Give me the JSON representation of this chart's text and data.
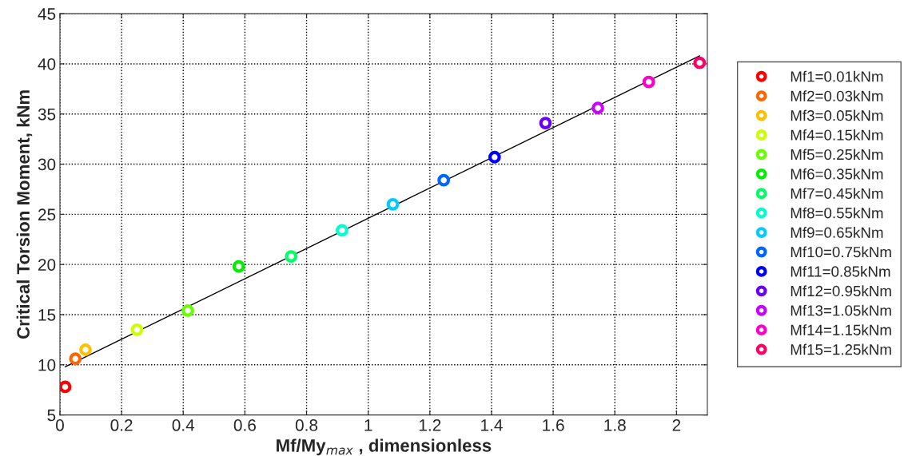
{
  "chart_data": {
    "type": "scatter",
    "xlabel": "Mf/My$_{max}$ , dimensionless",
    "ylabel": "Critical Torsion Moment, kNm",
    "xlim": [
      0,
      2.1
    ],
    "xticks": [
      0,
      0.2,
      0.4,
      0.6,
      0.8,
      1,
      1.2,
      1.4,
      1.6,
      1.8,
      2
    ],
    "ylim": [
      5,
      45
    ],
    "yticks": [
      5,
      10,
      15,
      20,
      25,
      30,
      35,
      40,
      45
    ],
    "grid": true,
    "legend": "right",
    "marker": "circle",
    "series": [
      {
        "type": "line",
        "color": "#000000",
        "x": [
          0.017,
          2.075
        ],
        "values": [
          9.8,
          40.8
        ],
        "marker": "none"
      },
      {
        "name": "Mf1=0.01kNm",
        "color": "#ff0000",
        "x": [
          0.017
        ],
        "values": [
          7.8
        ]
      },
      {
        "name": "Mf2=0.03kNm",
        "color": "#ff6600",
        "x": [
          0.05
        ],
        "values": [
          10.6
        ]
      },
      {
        "name": "Mf3=0.05kNm",
        "color": "#ffc000",
        "x": [
          0.083
        ],
        "values": [
          11.5
        ]
      },
      {
        "name": "Mf4=0.15kNm",
        "color": "#ccff00",
        "x": [
          0.25
        ],
        "values": [
          13.5
        ]
      },
      {
        "name": "Mf5=0.25kNm",
        "color": "#66ff00",
        "x": [
          0.415
        ],
        "values": [
          15.4
        ]
      },
      {
        "name": "Mf6=0.35kNm",
        "color": "#00ee00",
        "x": [
          0.58
        ],
        "values": [
          19.8
        ]
      },
      {
        "name": "Mf7=0.45kNm",
        "color": "#00ff66",
        "x": [
          0.75
        ],
        "values": [
          20.8
        ]
      },
      {
        "name": "Mf8=0.55kNm",
        "color": "#00ffcc",
        "x": [
          0.915
        ],
        "values": [
          23.4
        ]
      },
      {
        "name": "Mf9=0.65kNm",
        "color": "#00ccff",
        "x": [
          1.08
        ],
        "values": [
          26.0
        ]
      },
      {
        "name": "Mf10=0.75kNm",
        "color": "#0066ff",
        "x": [
          1.245
        ],
        "values": [
          28.4
        ]
      },
      {
        "name": "Mf11=0.85kNm",
        "color": "#0000ff",
        "x": [
          1.41
        ],
        "values": [
          30.7
        ]
      },
      {
        "name": "Mf12=0.95kNm",
        "color": "#6600ff",
        "x": [
          1.575
        ],
        "values": [
          34.1
        ]
      },
      {
        "name": "Mf13=1.05kNm",
        "color": "#cc00ff",
        "x": [
          1.745
        ],
        "values": [
          35.6
        ]
      },
      {
        "name": "Mf14=1.15kNm",
        "color": "#ff00cc",
        "x": [
          1.91
        ],
        "values": [
          38.2
        ]
      },
      {
        "name": "Mf15=1.25kNm",
        "color": "#ff0066",
        "x": [
          2.075
        ],
        "values": [
          40.1
        ]
      }
    ]
  }
}
